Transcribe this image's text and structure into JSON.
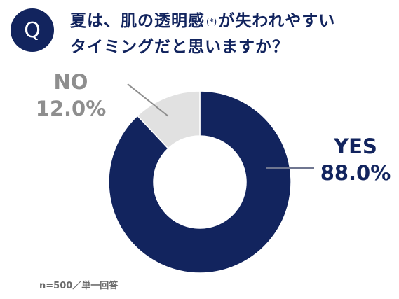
{
  "header": {
    "q_label": "Q",
    "title_line1_a": "夏は、肌の透明感",
    "title_note": "(*)",
    "title_line1_b": "が失われやすい",
    "title_line2": "タイミングだと思いますか？"
  },
  "colors": {
    "navy": "#12245e",
    "light_gray": "#e1e1e1",
    "gray_text": "#8e8e8e"
  },
  "chart_data": {
    "type": "pie",
    "donut": true,
    "title": "夏は、肌の透明感(*)が失われやすいタイミングだと思いますか？",
    "slices": [
      {
        "label": "YES",
        "value": 88.0,
        "value_label": "88.0%",
        "color": "#12245e"
      },
      {
        "label": "NO",
        "value": 12.0,
        "value_label": "12.0%",
        "color": "#e1e1e1"
      }
    ]
  },
  "footnote": "n=500／単一回答"
}
